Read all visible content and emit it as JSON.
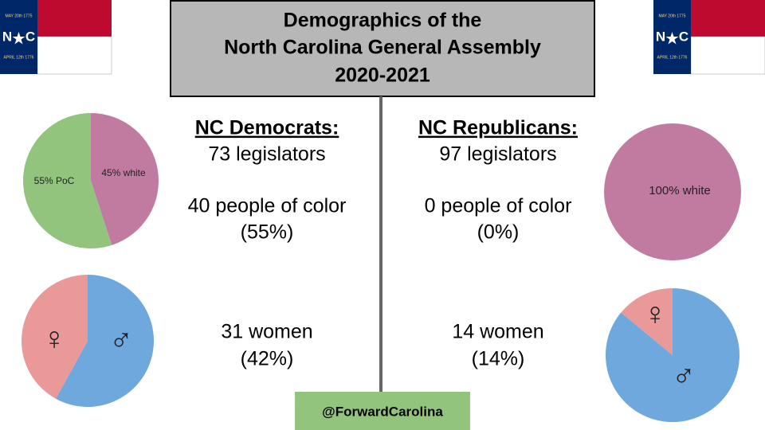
{
  "title": [
    "Demographics of the",
    "North Carolina General Assembly",
    "2020-2021"
  ],
  "flag": {
    "n": "N",
    "c": "C",
    "top": "MAY 20th 1775",
    "bottom": "APRIL 12th 1776"
  },
  "democrats": {
    "heading": "NC Democrats:",
    "count": "73 legislators",
    "poc": "40 people of color",
    "poc_pct": "(55%)",
    "women": "31 women",
    "women_pct": "(42%)"
  },
  "republicans": {
    "heading": "NC Republicans:",
    "count": "97 legislators",
    "poc": "0 people of color",
    "poc_pct": "(0%)",
    "women": "14 women",
    "women_pct": "(14%)"
  },
  "handle": "@ForwardCarolina",
  "charts": [
    {
      "type": "pie",
      "slices": [
        {
          "label": "45% white",
          "value": 45,
          "color": "#c27ba0"
        },
        {
          "label": "55% PoC",
          "value": 55,
          "color": "#93c47d"
        }
      ]
    },
    {
      "type": "pie",
      "slices": [
        {
          "label": "♂",
          "value": 58,
          "color": "#6fa8dc"
        },
        {
          "label": "♀",
          "value": 42,
          "color": "#ea9999"
        }
      ]
    },
    {
      "type": "pie",
      "slices": [
        {
          "label": "100% white",
          "value": 100,
          "color": "#c27ba0"
        }
      ]
    },
    {
      "type": "pie",
      "slices": [
        {
          "label": "♂",
          "value": 86,
          "color": "#6fa8dc"
        },
        {
          "label": "♀",
          "value": 14,
          "color": "#ea9999"
        }
      ]
    }
  ]
}
